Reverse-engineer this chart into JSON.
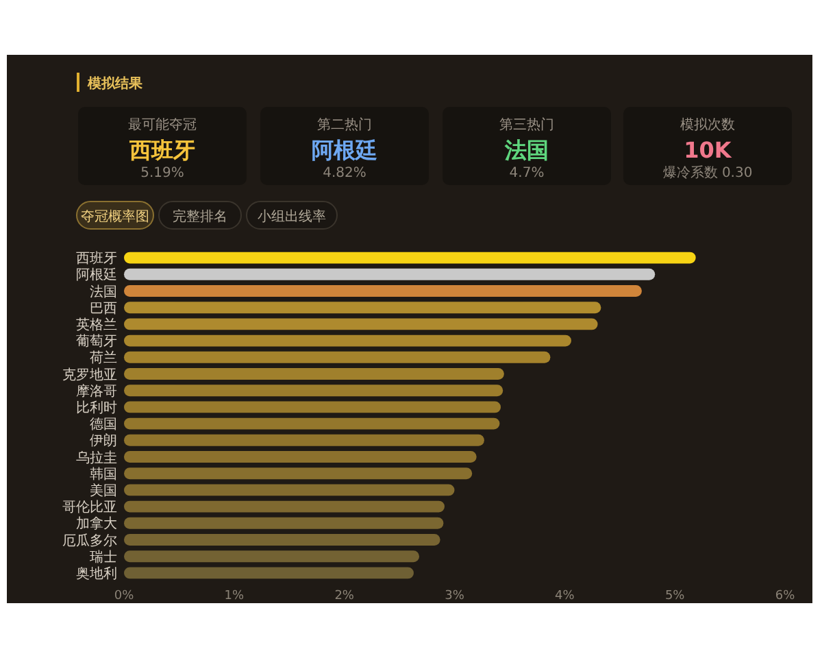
{
  "chart_data": [
    {
      "type": "other",
      "title": "模拟结果",
      "annotations": [
        "最可能夺冠",
        "西班牙",
        "5.19%",
        "第二热门",
        "阿根廷",
        "4.82%",
        "第三热门",
        "法国",
        "4.7%",
        "模拟次数",
        "10K",
        "爆冷系数 0.30",
        "夺冠概率图",
        "完整排名",
        "小组出线率"
      ]
    },
    {
      "type": "bar",
      "orientation": "horizontal",
      "categories": [
        "西班牙",
        "阿根廷",
        "法国",
        "巴西",
        "英格兰",
        "葡萄牙",
        "荷兰",
        "克罗地亚",
        "摩洛哥",
        "比利时",
        "德国",
        "伊朗",
        "乌拉圭",
        "韩国",
        "美国",
        "哥伦比亚",
        "加拿大",
        "厄瓜多尔",
        "瑞士",
        "奥地利"
      ],
      "values": [
        5.19,
        4.82,
        4.7,
        4.33,
        4.3,
        4.06,
        3.87,
        3.45,
        3.44,
        3.42,
        3.41,
        3.27,
        3.2,
        3.16,
        3.0,
        2.91,
        2.9,
        2.87,
        2.68,
        2.63
      ],
      "colors": [
        "#f7d414",
        "#c9c9c9",
        "#d0853a",
        "#b18d2e",
        "#ae8a2e",
        "#aa872d",
        "#a5832c",
        "#a0802c",
        "#9c7d2c",
        "#987a2c",
        "#94772c",
        "#90742c",
        "#8c712d",
        "#886f2e",
        "#836c2f",
        "#7f6930",
        "#7b6731",
        "#776432",
        "#736233",
        "#6f6034"
      ],
      "xlim": [
        0,
        6
      ],
      "xticks": [
        {
          "value": 0,
          "label": "0%"
        },
        {
          "value": 1,
          "label": "1%"
        },
        {
          "value": 2,
          "label": "2%"
        },
        {
          "value": 3,
          "label": "3%"
        },
        {
          "value": 4,
          "label": "4%"
        },
        {
          "value": 5,
          "label": "5%"
        },
        {
          "value": 6,
          "label": "6%"
        }
      ]
    }
  ]
}
